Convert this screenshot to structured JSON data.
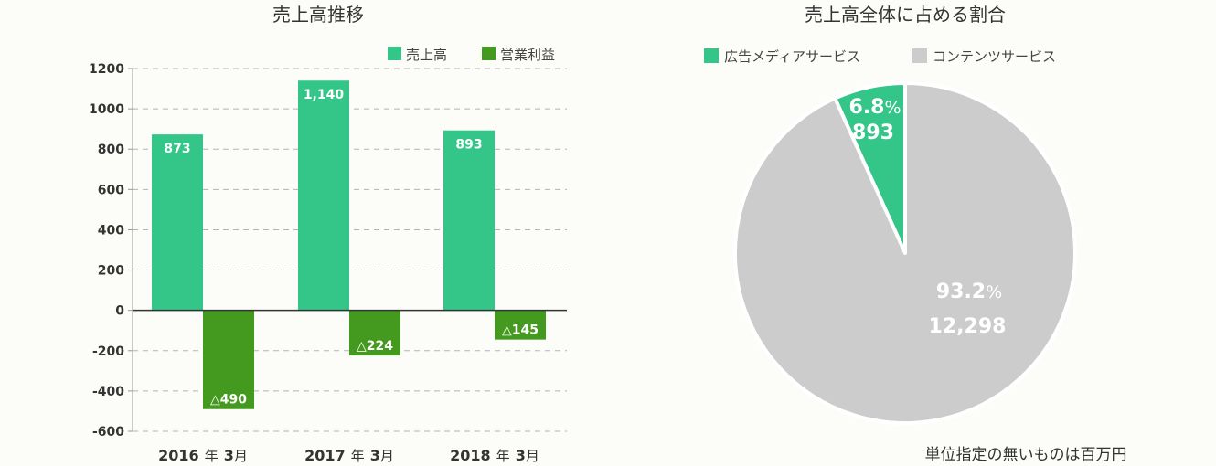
{
  "chart_data": [
    {
      "type": "bar",
      "title": "売上高推移",
      "categories": [
        "2016年3月",
        "2017年3月",
        "2018年3月"
      ],
      "category_labels": [
        {
          "year": "2016",
          "nen": "年",
          "month": "3",
          "tsuki": "月"
        },
        {
          "year": "2017",
          "nen": "年",
          "month": "3",
          "tsuki": "月"
        },
        {
          "year": "2018",
          "nen": "年",
          "month": "3",
          "tsuki": "月"
        }
      ],
      "series": [
        {
          "name": "売上高",
          "values": [
            873,
            1140,
            893
          ],
          "labels": [
            "873",
            "1,140",
            "893"
          ],
          "color": "#33c688"
        },
        {
          "name": "営業利益",
          "values": [
            -490,
            -224,
            -145
          ],
          "labels": [
            "△490",
            "△224",
            "△145"
          ],
          "color": "#44991f"
        }
      ],
      "ylim": [
        -600,
        1200
      ],
      "yticks": [
        "1200",
        "1000",
        "800",
        "600",
        "400",
        "200",
        "0",
        "-200",
        "-400",
        "-600"
      ],
      "ytick_values": [
        1200,
        1000,
        800,
        600,
        400,
        200,
        0,
        -200,
        -400,
        -600
      ],
      "grid": true,
      "legend_position": "top-right"
    },
    {
      "type": "pie",
      "title": "売上高全体に占める割合",
      "slices": [
        {
          "name": "広告メディアサービス",
          "value": 893,
          "percent": 6.8,
          "percent_label": "6.8",
          "value_label": "893",
          "color": "#33c688"
        },
        {
          "name": "コンテンツサービス",
          "value": 12298,
          "percent": 93.2,
          "percent_label": "93.2",
          "value_label": "12,298",
          "color": "#cccccc"
        }
      ],
      "percent_sign": "%",
      "legend_position": "top"
    }
  ],
  "note": "単位指定の無いものは百万円",
  "colors": {
    "background": "#fcfcf8",
    "sales": "#33c688",
    "profit": "#44991f",
    "content": "#cccccc",
    "grid": "#b3b3b3"
  }
}
